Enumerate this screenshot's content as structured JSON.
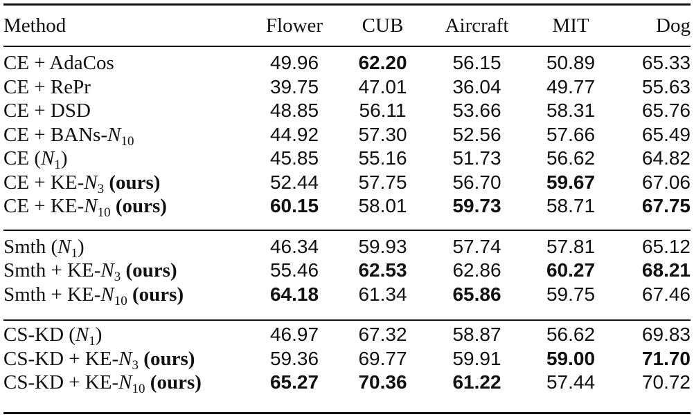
{
  "columns": {
    "method": "Method",
    "flower": "Flower",
    "cub": "CUB",
    "aircraft": "Aircraft",
    "mit": "MIT",
    "dog": "Dog"
  },
  "rows": [
    {
      "method": {
        "base": "CE + AdaCos",
        "n_label": "",
        "n_sub": "",
        "paren": false,
        "ours": ""
      },
      "values": [
        "49.96",
        "62.20",
        "56.15",
        "50.89",
        "65.33"
      ],
      "bold": [
        false,
        true,
        false,
        false,
        false
      ]
    },
    {
      "method": {
        "base": "CE + RePr",
        "n_label": "",
        "n_sub": "",
        "paren": false,
        "ours": ""
      },
      "values": [
        "39.75",
        "47.01",
        "36.04",
        "49.77",
        "55.63"
      ],
      "bold": [
        false,
        false,
        false,
        false,
        false
      ]
    },
    {
      "method": {
        "base": "CE + DSD",
        "n_label": "",
        "n_sub": "",
        "paren": false,
        "ours": ""
      },
      "values": [
        "48.85",
        "56.11",
        "53.66",
        "58.31",
        "65.76"
      ],
      "bold": [
        false,
        false,
        false,
        false,
        false
      ]
    },
    {
      "method": {
        "base": "CE + BANs-",
        "n_label": "N",
        "n_sub": "10",
        "paren": false,
        "ours": ""
      },
      "values": [
        "44.92",
        "57.30",
        "52.56",
        "57.66",
        "65.49"
      ],
      "bold": [
        false,
        false,
        false,
        false,
        false
      ]
    },
    {
      "method": {
        "base": "CE ",
        "n_label": "N",
        "n_sub": "1",
        "paren": true,
        "ours": ""
      },
      "values": [
        "45.85",
        "55.16",
        "51.73",
        "56.62",
        "64.82"
      ],
      "bold": [
        false,
        false,
        false,
        false,
        false
      ]
    },
    {
      "method": {
        "base": "CE + KE-",
        "n_label": "N",
        "n_sub": "3",
        "paren": false,
        "ours": "(ours)"
      },
      "values": [
        "52.44",
        "57.75",
        "56.70",
        "59.67",
        "67.06"
      ],
      "bold": [
        false,
        false,
        false,
        true,
        false
      ]
    },
    {
      "method": {
        "base": "CE + KE-",
        "n_label": "N",
        "n_sub": "10",
        "paren": false,
        "ours": "(ours)"
      },
      "values": [
        "60.15",
        "58.01",
        "59.73",
        "58.71",
        "67.75"
      ],
      "bold": [
        true,
        false,
        true,
        false,
        true
      ]
    },
    {
      "method": {
        "base": "Smth ",
        "n_label": "N",
        "n_sub": "1",
        "paren": true,
        "ours": ""
      },
      "values": [
        "46.34",
        "59.93",
        "57.74",
        "57.81",
        "65.12"
      ],
      "bold": [
        false,
        false,
        false,
        false,
        false
      ]
    },
    {
      "method": {
        "base": "Smth + KE-",
        "n_label": "N",
        "n_sub": "3",
        "paren": false,
        "ours": "(ours)"
      },
      "values": [
        "55.46",
        "62.53",
        "62.86",
        "60.27",
        "68.21"
      ],
      "bold": [
        false,
        true,
        false,
        true,
        true
      ]
    },
    {
      "method": {
        "base": "Smth + KE-",
        "n_label": "N",
        "n_sub": "10",
        "paren": false,
        "ours": "(ours)"
      },
      "values": [
        "64.18",
        "61.34",
        "65.86",
        "59.75",
        "67.46"
      ],
      "bold": [
        true,
        false,
        true,
        false,
        false
      ]
    },
    {
      "method": {
        "base": "CS-KD ",
        "n_label": "N",
        "n_sub": "1",
        "paren": true,
        "ours": ""
      },
      "values": [
        "46.97",
        "67.32",
        "58.87",
        "56.62",
        "69.83"
      ],
      "bold": [
        false,
        false,
        false,
        false,
        false
      ]
    },
    {
      "method": {
        "base": "CS-KD + KE-",
        "n_label": "N",
        "n_sub": "3",
        "paren": false,
        "ours": "(ours)"
      },
      "values": [
        "59.36",
        "69.77",
        "59.91",
        "59.00",
        "71.70"
      ],
      "bold": [
        false,
        false,
        false,
        true,
        true
      ]
    },
    {
      "method": {
        "base": "CS-KD + KE-",
        "n_label": "N",
        "n_sub": "10",
        "paren": false,
        "ours": "(ours)"
      },
      "values": [
        "65.27",
        "70.36",
        "61.22",
        "57.44",
        "70.72"
      ],
      "bold": [
        true,
        true,
        true,
        false,
        false
      ]
    }
  ]
}
